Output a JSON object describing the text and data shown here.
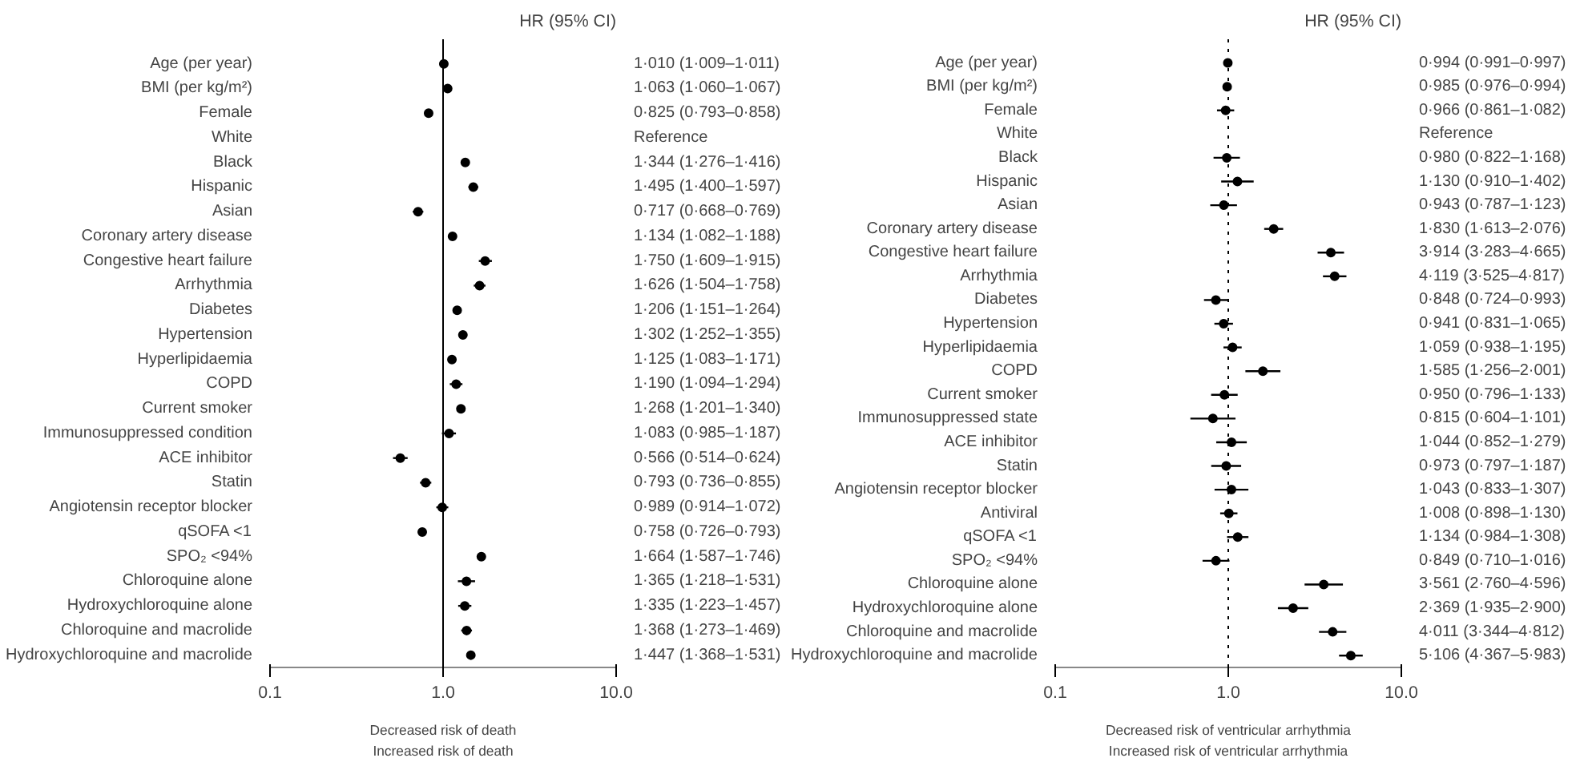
{
  "chart_data": [
    {
      "type": "scatter",
      "orientation": "horizontal",
      "log": "x",
      "grid": false,
      "marker": "circle",
      "categories": [
        "Age (per year)",
        "BMI (per kg/m²)",
        "Female",
        "White",
        "Black",
        "Hispanic",
        "Asian",
        "Coronary artery disease",
        "Congestive heart failure",
        "Arrhythmia",
        "Diabetes",
        "Hypertension",
        "Hyperlipidaemia",
        "COPD",
        "Current smoker",
        "Immunosuppressed condition",
        "ACE inhibitor",
        "Statin",
        "Angiotensin receptor blocker",
        "qSOFA <1",
        "SPO₂ <94%",
        "Chloroquine alone",
        "Hydroxychloroquine alone",
        "Chloroquine and macrolide",
        "Hydroxychloroquine and macrolide"
      ],
      "series": [
        {
          "color": "#000000",
          "values": [
            1.01,
            1.063,
            0.825,
            null,
            1.344,
            1.495,
            0.717,
            1.134,
            1.75,
            1.626,
            1.206,
            1.302,
            1.125,
            1.19,
            1.268,
            1.083,
            0.566,
            0.793,
            0.989,
            0.758,
            1.664,
            1.365,
            1.335,
            1.368,
            1.447
          ],
          "errors": [
            null,
            null,
            [
              0.793,
              0.858
            ],
            null,
            [
              1.276,
              1.416
            ],
            [
              1.4,
              1.597
            ],
            [
              0.668,
              0.769
            ],
            [
              1.082,
              1.188
            ],
            [
              1.609,
              1.915
            ],
            [
              1.504,
              1.758
            ],
            [
              1.151,
              1.264
            ],
            [
              1.252,
              1.355
            ],
            [
              1.083,
              1.171
            ],
            [
              1.094,
              1.294
            ],
            [
              1.201,
              1.34
            ],
            [
              0.985,
              1.187
            ],
            [
              0.514,
              0.624
            ],
            [
              0.736,
              0.855
            ],
            [
              0.914,
              1.072
            ],
            [
              0.726,
              0.793
            ],
            [
              1.587,
              1.746
            ],
            [
              1.218,
              1.531
            ],
            [
              1.223,
              1.457
            ],
            [
              1.273,
              1.469
            ],
            [
              1.368,
              1.531
            ]
          ],
          "value_labels": [
            "1·010 (1·009–1·011)",
            "1·063 (1·060–1·067)",
            "0·825 (0·793–0·858)",
            "Reference",
            "1·344 (1·276–1·416)",
            "1·495 (1·400–1·597)",
            "0·717 (0·668–0·769)",
            "1·134 (1·082–1·188)",
            "1·750 (1·609–1·915)",
            "1·626 (1·504–1·758)",
            "1·206 (1·151–1·264)",
            "1·302 (1·252–1·355)",
            "1·125 (1·083–1·171)",
            "1·190 (1·094–1·294)",
            "1·268 (1·201–1·340)",
            "1·083 (0·985–1·187)",
            "0·566 (0·514–0·624)",
            "0·793 (0·736–0·855)",
            "0·989 (0·914–1·072)",
            "0·758 (0·726–0·793)",
            "1·664 (1·587–1·746)",
            "1·365 (1·218–1·531)",
            "1·335 (1·223–1·457)",
            "1·368 (1·273–1·469)",
            "1·447 (1·368–1·531)"
          ]
        }
      ],
      "xlim": [
        0.1,
        10
      ],
      "xticks": [
        {
          "value": 0.1,
          "label": "0.1"
        },
        {
          "value": 1,
          "label": "1.0"
        },
        {
          "value": 10,
          "label": "10.0"
        }
      ],
      "ref_lines": [
        {
          "axis": "x",
          "value": 1,
          "color": "#000000",
          "line_style": "solid"
        }
      ],
      "annotations": [
        "HR (95% CI)",
        "Decreased risk of death",
        "Increased risk of death"
      ]
    },
    {
      "type": "scatter",
      "orientation": "horizontal",
      "log": "x",
      "grid": false,
      "marker": "circle",
      "categories": [
        "Age (per year)",
        "BMI (per kg/m²)",
        "Female",
        "White",
        "Black",
        "Hispanic",
        "Asian",
        "Coronary artery disease",
        "Congestive heart failure",
        "Arrhythmia",
        "Diabetes",
        "Hypertension",
        "Hyperlipidaemia",
        "COPD",
        "Current smoker",
        "Immunosuppressed state",
        "ACE inhibitor",
        "Statin",
        "Angiotensin receptor blocker",
        "Antiviral",
        "qSOFA <1",
        "SPO₂ <94%",
        "Chloroquine alone",
        "Hydroxychloroquine alone",
        "Chloroquine and macrolide",
        "Hydroxychloroquine and macrolide"
      ],
      "series": [
        {
          "color": "#000000",
          "values": [
            0.994,
            0.985,
            0.966,
            null,
            0.98,
            1.13,
            0.943,
            1.83,
            3.914,
            4.119,
            0.848,
            0.941,
            1.059,
            1.585,
            0.95,
            0.815,
            1.044,
            0.973,
            1.043,
            1.008,
            1.134,
            0.849,
            3.561,
            2.369,
            4.011,
            5.106
          ],
          "errors": [
            null,
            [
              0.976,
              0.994
            ],
            [
              0.861,
              1.082
            ],
            null,
            [
              0.822,
              1.168
            ],
            [
              0.91,
              1.402
            ],
            [
              0.787,
              1.123
            ],
            [
              1.613,
              2.076
            ],
            [
              3.283,
              4.665
            ],
            [
              3.525,
              4.817
            ],
            [
              0.724,
              0.993
            ],
            [
              0.831,
              1.065
            ],
            [
              0.938,
              1.195
            ],
            [
              1.256,
              2.001
            ],
            [
              0.796,
              1.133
            ],
            [
              0.604,
              1.101
            ],
            [
              0.852,
              1.279
            ],
            [
              0.797,
              1.187
            ],
            [
              0.833,
              1.307
            ],
            [
              0.898,
              1.13
            ],
            [
              0.984,
              1.308
            ],
            [
              0.71,
              1.016
            ],
            [
              2.76,
              4.596
            ],
            [
              1.935,
              2.9
            ],
            [
              3.344,
              4.812
            ],
            [
              4.367,
              5.983
            ]
          ],
          "value_labels": [
            "0·994 (0·991–0·997)",
            "0·985 (0·976–0·994)",
            "0·966 (0·861–1·082)",
            "Reference",
            "0·980 (0·822–1·168)",
            "1·130 (0·910–1·402)",
            "0·943 (0·787–1·123)",
            "1·830 (1·613–2·076)",
            "3·914 (3·283–4·665)",
            "4·119 (3·525–4·817)",
            "0·848 (0·724–0·993)",
            "0·941 (0·831–1·065)",
            "1·059 (0·938–1·195)",
            "1·585 (1·256–2·001)",
            "0·950 (0·796–1·133)",
            "0·815 (0·604–1·101)",
            "1·044 (0·852–1·279)",
            "0·973 (0·797–1·187)",
            "1·043 (0·833–1·307)",
            "1·008 (0·898–1·130)",
            "1·134 (0·984–1·308)",
            "0·849 (0·710–1·016)",
            "3·561 (2·760–4·596)",
            "2·369 (1·935–2·900)",
            "4·011 (3·344–4·812)",
            "5·106 (4·367–5·983)"
          ]
        }
      ],
      "xlim": [
        0.1,
        10
      ],
      "xticks": [
        {
          "value": 0.1,
          "label": "0.1"
        },
        {
          "value": 1,
          "label": "1.0"
        },
        {
          "value": 10,
          "label": "10.0"
        }
      ],
      "ref_lines": [
        {
          "axis": "x",
          "value": 1,
          "color": "#000000",
          "line_style": "dotted"
        }
      ],
      "annotations": [
        "HR (95% CI)",
        "Decreased risk of ventricular arrhythmia",
        "Increased risk of ventricular arrhythmia"
      ]
    }
  ]
}
